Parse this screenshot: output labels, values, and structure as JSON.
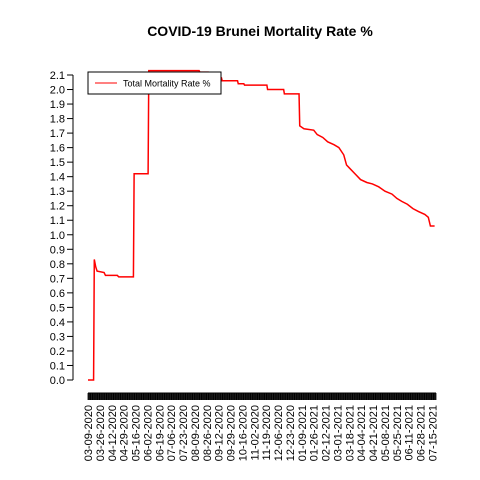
{
  "chart_data": {
    "type": "line",
    "title": "COVID-19 Brunei Mortality Rate %",
    "xlabel": "",
    "ylabel": "",
    "legend": {
      "position": "top-left",
      "entries": [
        {
          "label": "Total Mortality Rate %",
          "color": "#ff0000"
        }
      ]
    },
    "ylim": [
      0,
      2.1
    ],
    "yticks": [
      "0.0",
      "0.1",
      "0.2",
      "0.3",
      "0.4",
      "0.5",
      "0.6",
      "0.7",
      "0.8",
      "0.9",
      "1.0",
      "1.1",
      "1.2",
      "1.3",
      "1.4",
      "1.5",
      "1.6",
      "1.7",
      "1.8",
      "1.9",
      "2.0",
      "2.1"
    ],
    "xlim": [
      "2020-03-09",
      "2021-07-20"
    ],
    "xtick_labels": [
      "03-09-2020",
      "03-26-2020",
      "04-12-2020",
      "04-29-2020",
      "05-16-2020",
      "06-02-2020",
      "06-19-2020",
      "07-06-2020",
      "07-23-2020",
      "08-09-2020",
      "08-26-2020",
      "09-12-2020",
      "09-29-2020",
      "10-16-2020",
      "11-02-2020",
      "11-19-2020",
      "12-06-2020",
      "12-23-2020",
      "01-09-2021",
      "01-26-2021",
      "02-12-2021",
      "03-01-2021",
      "03-18-2021",
      "04-04-2021",
      "04-21-2021",
      "05-08-2021",
      "05-25-2021",
      "06-11-2021",
      "06-28-2021",
      "07-15-2021"
    ],
    "series": [
      {
        "name": "Total Mortality Rate %",
        "color": "#ff0000",
        "points": [
          [
            "2020-03-09",
            0.0
          ],
          [
            "2020-03-17",
            0.0
          ],
          [
            "2020-03-18",
            0.83
          ],
          [
            "2020-03-20",
            0.78
          ],
          [
            "2020-03-22",
            0.75
          ],
          [
            "2020-04-01",
            0.74
          ],
          [
            "2020-04-03",
            0.72
          ],
          [
            "2020-04-20",
            0.72
          ],
          [
            "2020-04-22",
            0.71
          ],
          [
            "2020-05-13",
            0.71
          ],
          [
            "2020-05-14",
            1.42
          ],
          [
            "2020-06-03",
            1.42
          ],
          [
            "2020-06-04",
            2.13
          ],
          [
            "2020-08-15",
            2.13
          ],
          [
            "2020-08-16",
            2.12
          ],
          [
            "2020-08-28",
            2.12
          ],
          [
            "2020-08-29",
            2.1
          ],
          [
            "2020-09-07",
            2.1
          ],
          [
            "2020-09-08",
            2.08
          ],
          [
            "2020-09-16",
            2.08
          ],
          [
            "2020-09-17",
            2.06
          ],
          [
            "2020-10-09",
            2.06
          ],
          [
            "2020-10-10",
            2.04
          ],
          [
            "2020-10-18",
            2.04
          ],
          [
            "2020-10-19",
            2.03
          ],
          [
            "2020-11-20",
            2.03
          ],
          [
            "2020-11-21",
            2.0
          ],
          [
            "2020-12-14",
            2.0
          ],
          [
            "2020-12-15",
            1.97
          ],
          [
            "2021-01-05",
            1.97
          ],
          [
            "2021-01-06",
            1.75
          ],
          [
            "2021-01-12",
            1.73
          ],
          [
            "2021-01-26",
            1.72
          ],
          [
            "2021-01-31",
            1.69
          ],
          [
            "2021-02-08",
            1.67
          ],
          [
            "2021-02-15",
            1.64
          ],
          [
            "2021-02-24",
            1.62
          ],
          [
            "2021-03-03",
            1.6
          ],
          [
            "2021-03-10",
            1.55
          ],
          [
            "2021-03-14",
            1.48
          ],
          [
            "2021-03-18",
            1.46
          ],
          [
            "2021-03-26",
            1.42
          ],
          [
            "2021-04-03",
            1.38
          ],
          [
            "2021-04-12",
            1.36
          ],
          [
            "2021-04-20",
            1.35
          ],
          [
            "2021-04-29",
            1.33
          ],
          [
            "2021-05-08",
            1.3
          ],
          [
            "2021-05-18",
            1.28
          ],
          [
            "2021-05-25",
            1.25
          ],
          [
            "2021-06-01",
            1.23
          ],
          [
            "2021-06-09",
            1.21
          ],
          [
            "2021-06-17",
            1.18
          ],
          [
            "2021-06-25",
            1.16
          ],
          [
            "2021-07-04",
            1.14
          ],
          [
            "2021-07-09",
            1.12
          ],
          [
            "2021-07-12",
            1.06
          ],
          [
            "2021-07-18",
            1.06
          ]
        ]
      }
    ]
  }
}
